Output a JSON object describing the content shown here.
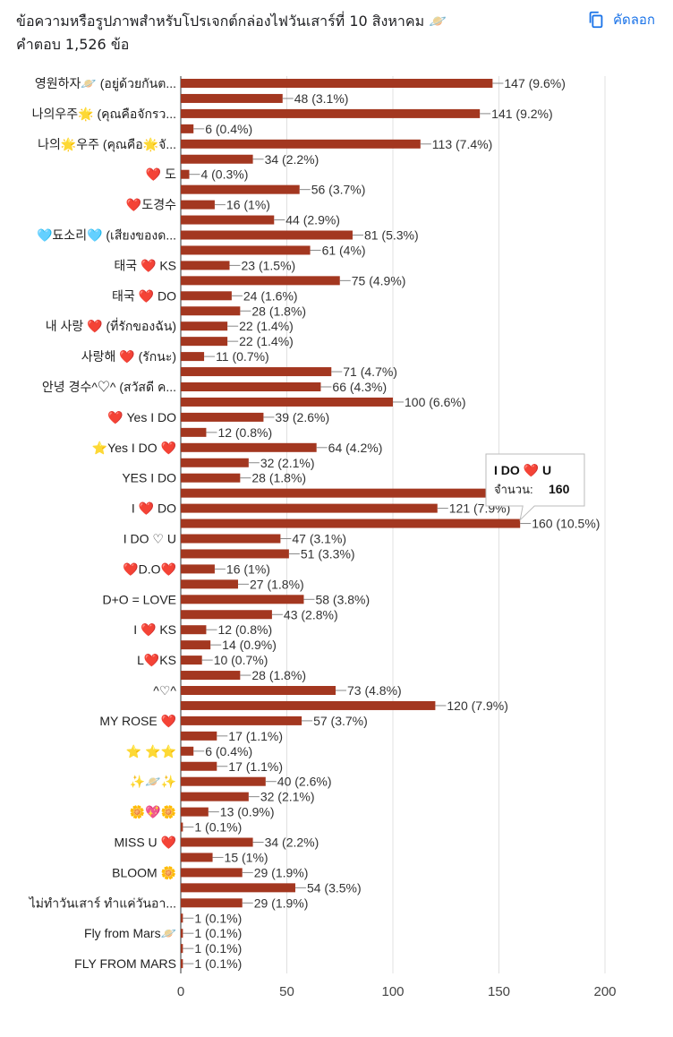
{
  "header": {
    "title": "ข้อความหรือรูปภาพสำหรับโปรเจกต์กล่องไฟวันเสาร์ที่ 10 สิงหาคม 🪐",
    "response_count": "คำตอบ 1,526 ข้อ",
    "copy_label": "คัดลอก"
  },
  "colors": {
    "bar": "#a33720",
    "grid": "#e0e0e0",
    "link": "#1a73e8"
  },
  "tooltip": {
    "label": "I DO ❤️ U",
    "value_label": "จำนวน:",
    "value": "160",
    "row_index": 29
  },
  "chart_data": {
    "type": "bar",
    "orientation": "horizontal",
    "title": "ข้อความหรือรูปภาพสำหรับโปรเจกต์กล่องไฟวันเสาร์ที่ 10 สิงหาคม 🪐",
    "xlim": [
      0,
      200
    ],
    "x_ticks": [
      0,
      50,
      100,
      150,
      200
    ],
    "grid": true,
    "rows": [
      {
        "label": "영원하자🪐 (อยู่ด้วยกันต...",
        "value": 147,
        "display": "147 (9.6%)"
      },
      {
        "label": "",
        "value": 48,
        "display": "48 (3.1%)"
      },
      {
        "label": "나의우주🌟 (คุณคือจักรว...",
        "value": 141,
        "display": "141 (9.2%)"
      },
      {
        "label": "",
        "value": 6,
        "display": "6 (0.4%)"
      },
      {
        "label": "나의🌟우주 (คุณคือ🌟จั...",
        "value": 113,
        "display": "113 (7.4%)"
      },
      {
        "label": "",
        "value": 34,
        "display": "34 (2.2%)"
      },
      {
        "label": "❤️ 도",
        "value": 4,
        "display": "4 (0.3%)"
      },
      {
        "label": "",
        "value": 56,
        "display": "56 (3.7%)"
      },
      {
        "label": "❤️도경수",
        "value": 16,
        "display": "16 (1%)"
      },
      {
        "label": "",
        "value": 44,
        "display": "44 (2.9%)"
      },
      {
        "label": "🩵됴소리🩵 (เสียงของด...",
        "value": 81,
        "display": "81 (5.3%)"
      },
      {
        "label": "",
        "value": 61,
        "display": "61 (4%)"
      },
      {
        "label": "태국 ❤️ KS",
        "value": 23,
        "display": "23 (1.5%)"
      },
      {
        "label": "",
        "value": 75,
        "display": "75 (4.9%)"
      },
      {
        "label": "태국 ❤️ DO",
        "value": 24,
        "display": "24 (1.6%)"
      },
      {
        "label": "",
        "value": 28,
        "display": "28 (1.8%)"
      },
      {
        "label": "내 사랑 ❤️ (ที่รักของฉัน)",
        "value": 22,
        "display": "22 (1.4%)"
      },
      {
        "label": "",
        "value": 22,
        "display": "22 (1.4%)"
      },
      {
        "label": "사랑해 ❤️ (รักนะ)",
        "value": 11,
        "display": "11 (0.7%)"
      },
      {
        "label": "",
        "value": 71,
        "display": "71 (4.7%)"
      },
      {
        "label": "안녕 경수^♡^ (สวัสดี ค...",
        "value": 66,
        "display": "66 (4.3%)"
      },
      {
        "label": "",
        "value": 100,
        "display": "100 (6.6%)"
      },
      {
        "label": "❤️ Yes I DO",
        "value": 39,
        "display": "39 (2.6%)"
      },
      {
        "label": "",
        "value": 12,
        "display": "12 (0.8%)"
      },
      {
        "label": "⭐️Yes I DO ❤️",
        "value": 64,
        "display": "64 (4.2%)"
      },
      {
        "label": "",
        "value": 32,
        "display": "32 (2.1%)"
      },
      {
        "label": "YES I DO",
        "value": 28,
        "display": "28 (1.8%)"
      },
      {
        "label": "",
        "value": 160,
        "display": ""
      },
      {
        "label": "I ❤️ DO",
        "value": 121,
        "display": "121 (7.9%)"
      },
      {
        "label": "",
        "value": 160,
        "display": "160 (10.5%)"
      },
      {
        "label": "I DO ♡ U",
        "value": 47,
        "display": "47 (3.1%)"
      },
      {
        "label": "",
        "value": 51,
        "display": "51 (3.3%)"
      },
      {
        "label": "❤️D.O❤️",
        "value": 16,
        "display": "16 (1%)"
      },
      {
        "label": "",
        "value": 27,
        "display": "27 (1.8%)"
      },
      {
        "label": "D+O = LOVE",
        "value": 58,
        "display": "58 (3.8%)"
      },
      {
        "label": "",
        "value": 43,
        "display": "43 (2.8%)"
      },
      {
        "label": "I ❤️ KS",
        "value": 12,
        "display": "12 (0.8%)"
      },
      {
        "label": "",
        "value": 14,
        "display": "14 (0.9%)"
      },
      {
        "label": "L❤️KS",
        "value": 10,
        "display": "10 (0.7%)"
      },
      {
        "label": "",
        "value": 28,
        "display": "28 (1.8%)"
      },
      {
        "label": "^♡^",
        "value": 73,
        "display": "73 (4.8%)"
      },
      {
        "label": "",
        "value": 120,
        "display": "120 (7.9%)"
      },
      {
        "label": "MY ROSE ❤️",
        "value": 57,
        "display": "57 (3.7%)"
      },
      {
        "label": "",
        "value": 17,
        "display": "17 (1.1%)"
      },
      {
        "label": "⭐️ ⭐️⭐️",
        "value": 6,
        "display": "6 (0.4%)"
      },
      {
        "label": "",
        "value": 17,
        "display": "17 (1.1%)"
      },
      {
        "label": "✨🪐✨",
        "value": 40,
        "display": "40 (2.6%)"
      },
      {
        "label": "",
        "value": 32,
        "display": "32 (2.1%)"
      },
      {
        "label": "🌼💖🌼",
        "value": 13,
        "display": "13 (0.9%)"
      },
      {
        "label": "",
        "value": 1,
        "display": "1 (0.1%)"
      },
      {
        "label": "MISS U ❤️",
        "value": 34,
        "display": "34 (2.2%)"
      },
      {
        "label": "",
        "value": 15,
        "display": "15 (1%)"
      },
      {
        "label": "BLOOM 🌼",
        "value": 29,
        "display": "29 (1.9%)"
      },
      {
        "label": "",
        "value": 54,
        "display": "54 (3.5%)"
      },
      {
        "label": "ไม่ทำวันเสาร์ ทำแค่วันอา...",
        "value": 29,
        "display": "29 (1.9%)"
      },
      {
        "label": "",
        "value": 1,
        "display": "1 (0.1%)"
      },
      {
        "label": "Fly from Mars🪐",
        "value": 1,
        "display": "1 (0.1%)"
      },
      {
        "label": "",
        "value": 1,
        "display": "1 (0.1%)"
      },
      {
        "label": "FLY FROM MARS",
        "value": 1,
        "display": "1 (0.1%)"
      }
    ]
  }
}
